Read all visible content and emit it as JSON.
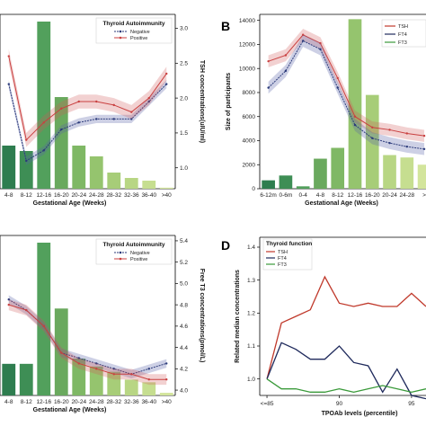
{
  "colors": {
    "negative": "#2b3a7a",
    "positive": "#c94040",
    "tsh": "#c0392b",
    "ft4": "#1f2a5c",
    "ft3": "#3a9a3a",
    "bar_colors": [
      "#2e7d4f",
      "#3e8e55",
      "#52a05c",
      "#6aa95e",
      "#7fb865",
      "#95c46e",
      "#a7cd78",
      "#b8d684",
      "#c6de90",
      "#d3e59c"
    ]
  },
  "panels": {
    "A": {
      "letter": "",
      "legend_title": "Thyroid Autoimmunity",
      "legend": [
        "Negative",
        "Positive"
      ],
      "xlabel": "Gestational Age (Weeks)",
      "ylabel_right": "TSH concentrations(uIU/ml)",
      "yticks_right": [
        "1.0",
        "1.5",
        "2.0",
        "2.5",
        "3.0"
      ]
    },
    "B": {
      "letter": "B",
      "legend": [
        "TSH",
        "FT4",
        "FT3"
      ],
      "xlabel": "Gestational Age (Weeks)",
      "ylabel": "Size of participants",
      "yticks": [
        "0",
        "2000",
        "4000",
        "6000",
        "8000",
        "10000",
        "12000",
        "14000"
      ]
    },
    "C": {
      "letter": "",
      "legend_title": "Thyroid Autoimmunity",
      "legend": [
        "Negative",
        "Positive"
      ],
      "xlabel": "Gestational Age (Weeks)",
      "ylabel_right": "Free T3 concentrations(pmol/L)",
      "yticks_right": [
        "4.0",
        "4.2",
        "4.4",
        "4.6",
        "4.8",
        "5.0",
        "5.2",
        "5.4"
      ]
    },
    "D": {
      "letter": "D",
      "legend_title": "Thyroid function",
      "legend": [
        "TSH",
        "FT4",
        "FT3"
      ],
      "xlabel": "TPOAb levels (percentile)",
      "ylabel": "Related median concentrations",
      "yticks": [
        "1.0",
        "1.1",
        "1.2",
        "1.3",
        "1.4"
      ],
      "xticks": [
        "<=85",
        "90",
        "95"
      ]
    }
  },
  "chart_data": [
    {
      "panel": "A",
      "type": "bar",
      "categories": [
        "4-8",
        "8-12",
        "12-16",
        "16-20",
        "20-24",
        "24-28",
        "28-32",
        "32-36",
        "36-40",
        ">40"
      ],
      "bars": [
        0.8,
        0.7,
        3.1,
        1.7,
        0.8,
        0.6,
        0.3,
        0.2,
        0.15,
        0.02
      ],
      "y_right_lim": [
        0.7,
        3.2
      ],
      "series": [
        {
          "name": "Negative",
          "values": [
            2.2,
            1.1,
            1.25,
            1.55,
            1.65,
            1.7,
            1.7,
            1.7,
            1.95,
            2.2
          ],
          "band": 0.06
        },
        {
          "name": "Positive",
          "values": [
            2.6,
            1.4,
            1.65,
            1.85,
            1.95,
            1.95,
            1.9,
            1.8,
            2.0,
            2.35
          ],
          "band": 0.1
        }
      ]
    },
    {
      "panel": "B",
      "type": "bar",
      "categories": [
        "6-12m",
        "0-6m",
        "0-4",
        "4-8",
        "8-12",
        "12-16",
        "16-20",
        "20-24",
        "24-28",
        ">"
      ],
      "values": [
        700,
        1100,
        200,
        2500,
        3400,
        14100,
        7800,
        2800,
        2600,
        2000
      ],
      "ylim": [
        0,
        14500
      ],
      "series": [
        {
          "name": "TSH",
          "values": [
            10600,
            11100,
            12800,
            12100,
            9200,
            6000,
            5100,
            4900,
            4600,
            4400
          ],
          "band": 500
        },
        {
          "name": "FT4",
          "values": [
            8400,
            9800,
            12300,
            11600,
            8400,
            5300,
            4200,
            3800,
            3500,
            3300
          ],
          "band": 500
        }
      ]
    },
    {
      "panel": "C",
      "type": "bar",
      "categories": [
        "4-8",
        "8-12",
        "12-16",
        "16-20",
        "20-24",
        "24-28",
        "28-32",
        "32-36",
        "36-40",
        ">40"
      ],
      "bars": [
        0.6,
        0.6,
        2.9,
        1.65,
        0.7,
        0.55,
        0.45,
        0.3,
        0.25,
        0.05
      ],
      "y_right_lim": [
        3.95,
        5.45
      ],
      "series": [
        {
          "name": "Negative",
          "values": [
            4.85,
            4.75,
            4.6,
            4.35,
            4.3,
            4.25,
            4.2,
            4.15,
            4.2,
            4.25
          ],
          "band": 0.04
        },
        {
          "name": "Positive",
          "values": [
            4.8,
            4.75,
            4.6,
            4.35,
            4.25,
            4.2,
            4.15,
            4.15,
            4.1,
            4.1
          ],
          "band": 0.05
        }
      ]
    },
    {
      "panel": "D",
      "type": "line",
      "x": [
        85,
        86,
        87,
        88,
        89,
        90,
        91,
        92,
        93,
        94,
        95,
        96
      ],
      "xlim": [
        84.5,
        96
      ],
      "ylim": [
        0.95,
        1.43
      ],
      "series": [
        {
          "name": "TSH",
          "values": [
            1.0,
            1.17,
            1.19,
            1.21,
            1.31,
            1.23,
            1.22,
            1.23,
            1.22,
            1.22,
            1.26,
            1.22
          ]
        },
        {
          "name": "FT4",
          "values": [
            1.0,
            1.11,
            1.09,
            1.06,
            1.06,
            1.1,
            1.05,
            1.04,
            0.96,
            1.03,
            0.95,
            0.94
          ]
        },
        {
          "name": "FT3",
          "values": [
            1.0,
            0.97,
            0.97,
            0.96,
            0.96,
            0.97,
            0.96,
            0.97,
            0.98,
            0.97,
            0.96,
            0.97
          ]
        }
      ]
    }
  ]
}
